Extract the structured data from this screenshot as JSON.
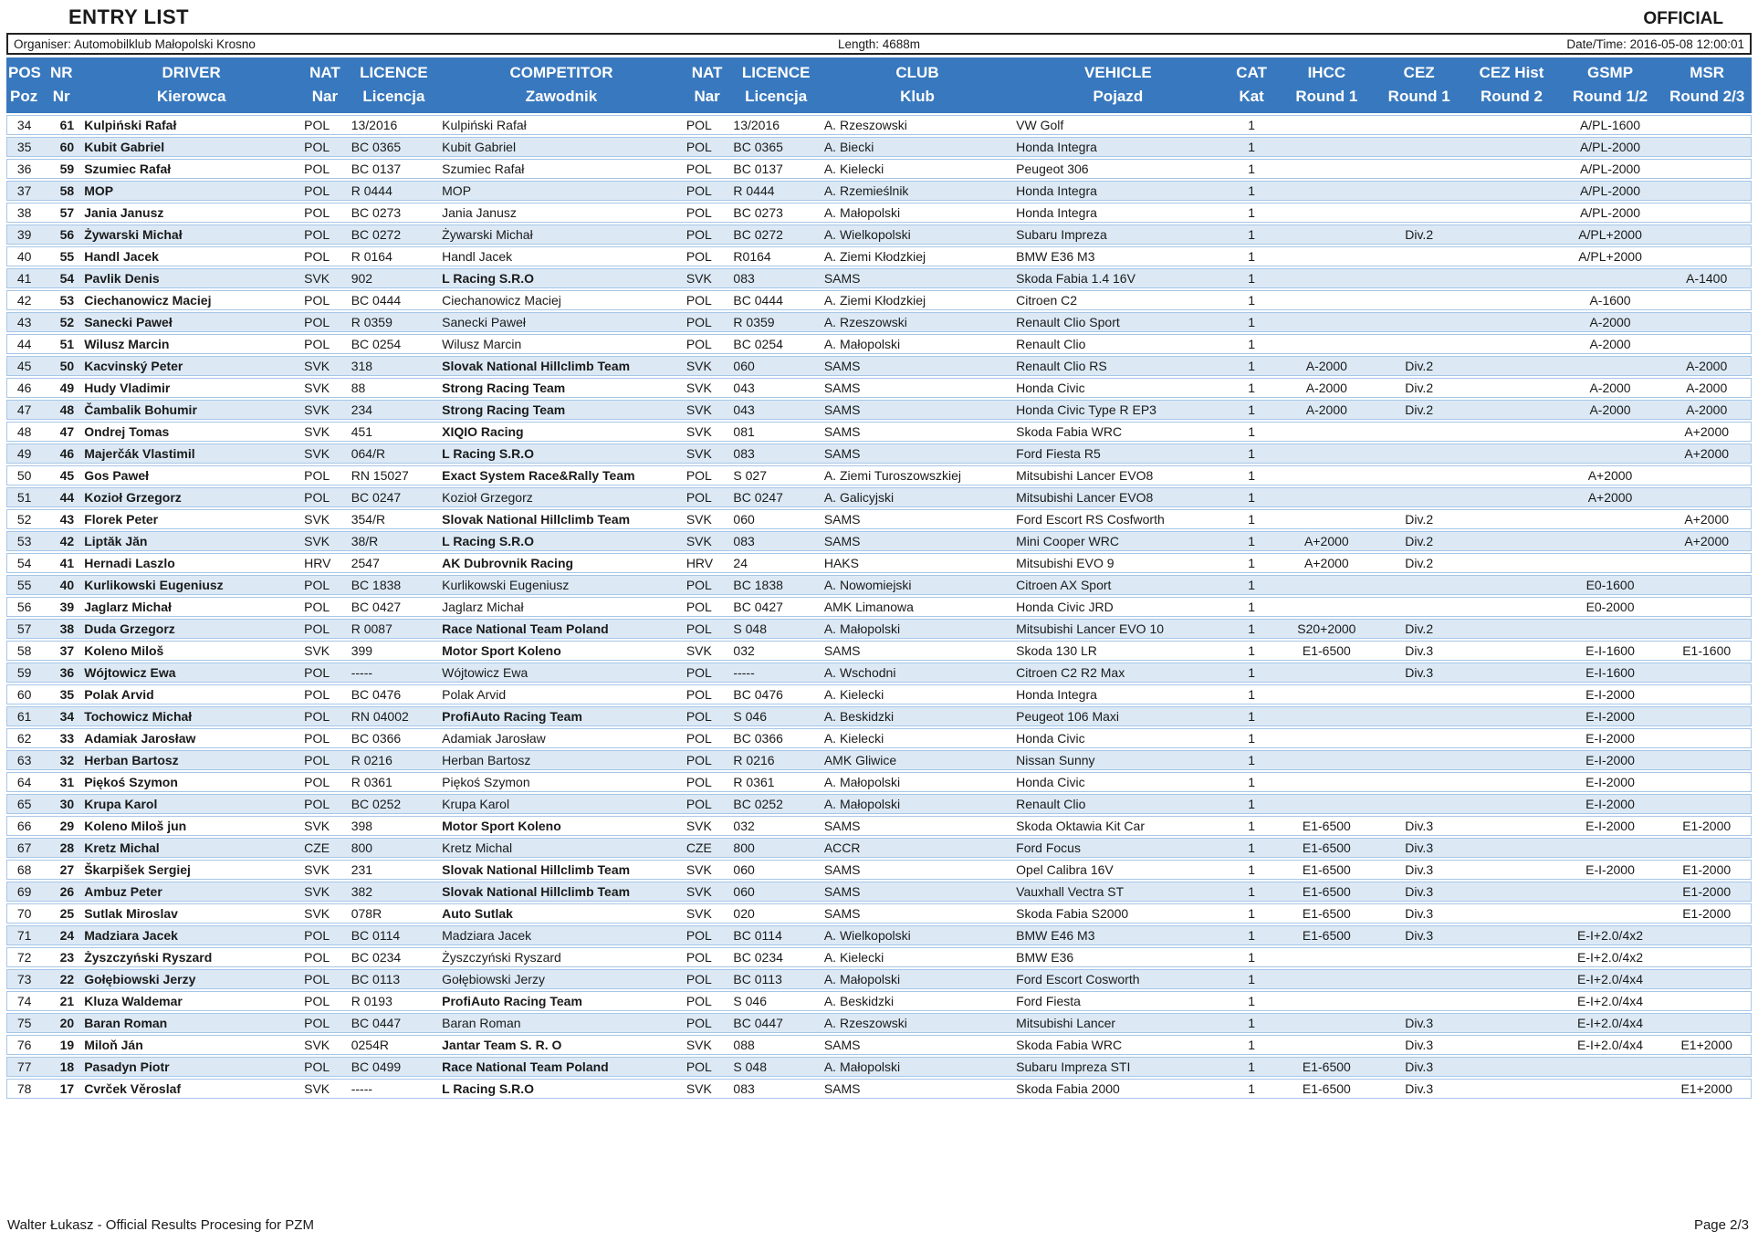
{
  "header": {
    "title": "ENTRY LIST",
    "official": "OFFICIAL",
    "organiser": "Organiser: Automobilklub Małopolski Krosno",
    "length": "Length: 4688m",
    "datetime": "Date/Time: 2016-05-08 12:00:01"
  },
  "colors": {
    "header_bg": "#3878BE",
    "stripe": "#DCE9F5",
    "grid": "#A6C6E7"
  },
  "table": {
    "columns": [
      {
        "key": "pos",
        "en": "POS",
        "pl": "Poz"
      },
      {
        "key": "nr",
        "en": "NR",
        "pl": "Nr"
      },
      {
        "key": "driver",
        "en": "DRIVER",
        "pl": "Kierowca"
      },
      {
        "key": "driver_nat",
        "en": "NAT",
        "pl": "Nar"
      },
      {
        "key": "driver_licence",
        "en": "LICENCE",
        "pl": "Licencja"
      },
      {
        "key": "competitor",
        "en": "COMPETITOR",
        "pl": "Zawodnik"
      },
      {
        "key": "comp_nat",
        "en": "NAT",
        "pl": "Nar"
      },
      {
        "key": "comp_licence",
        "en": "LICENCE",
        "pl": "Licencja"
      },
      {
        "key": "club",
        "en": "CLUB",
        "pl": "Klub"
      },
      {
        "key": "vehicle",
        "en": "VEHICLE",
        "pl": "Pojazd"
      },
      {
        "key": "cat",
        "en": "CAT",
        "pl": "Kat"
      },
      {
        "key": "ihcc",
        "en": "IHCC",
        "pl": "Round 1"
      },
      {
        "key": "cez",
        "en": "CEZ",
        "pl": "Round 1"
      },
      {
        "key": "cez_hist",
        "en": "CEZ Hist",
        "pl": "Round 2"
      },
      {
        "key": "gsmp",
        "en": "GSMP",
        "pl": "Round 1/2"
      },
      {
        "key": "msr",
        "en": "MSR",
        "pl": "Round 2/3"
      }
    ],
    "row_fields": [
      "pos",
      "nr",
      "driver",
      "driver_nat",
      "driver_licence",
      "competitor",
      "competitor_is_team",
      "comp_nat",
      "comp_licence",
      "club",
      "vehicle",
      "cat",
      "ihcc",
      "cez",
      "cez_hist",
      "gsmp",
      "msr"
    ],
    "rows": [
      [
        "34",
        "61",
        "Kulpiński Rafał",
        "POL",
        "13/2016",
        "Kulpiński Rafał",
        false,
        "POL",
        "13/2016",
        "A. Rzeszowski",
        "VW Golf",
        "1",
        "",
        "",
        "",
        "A/PL-1600",
        ""
      ],
      [
        "35",
        "60",
        "Kubit Gabriel",
        "POL",
        "BC 0365",
        "Kubit Gabriel",
        false,
        "POL",
        "BC 0365",
        "A. Biecki",
        "Honda Integra",
        "1",
        "",
        "",
        "",
        "A/PL-2000",
        ""
      ],
      [
        "36",
        "59",
        "Szumiec Rafał",
        "POL",
        "BC 0137",
        "Szumiec Rafał",
        false,
        "POL",
        "BC 0137",
        "A. Kielecki",
        "Peugeot 306",
        "1",
        "",
        "",
        "",
        "A/PL-2000",
        ""
      ],
      [
        "37",
        "58",
        "MOP",
        "POL",
        "R 0444",
        "MOP",
        false,
        "POL",
        "R 0444",
        "A. Rzemieślnik",
        "Honda Integra",
        "1",
        "",
        "",
        "",
        "A/PL-2000",
        ""
      ],
      [
        "38",
        "57",
        "Jania Janusz",
        "POL",
        "BC 0273",
        "Jania Janusz",
        false,
        "POL",
        "BC 0273",
        "A. Małopolski",
        "Honda Integra",
        "1",
        "",
        "",
        "",
        "A/PL-2000",
        ""
      ],
      [
        "39",
        "56",
        "Żywarski Michał",
        "POL",
        "BC 0272",
        "Żywarski Michał",
        false,
        "POL",
        "BC 0272",
        "A. Wielkopolski",
        "Subaru Impreza",
        "1",
        "",
        "Div.2",
        "",
        "A/PL+2000",
        ""
      ],
      [
        "40",
        "55",
        "Handl Jacek",
        "POL",
        "R 0164",
        "Handl Jacek",
        false,
        "POL",
        "R0164",
        "A. Ziemi Kłodzkiej",
        "BMW E36 M3",
        "1",
        "",
        "",
        "",
        "A/PL+2000",
        ""
      ],
      [
        "41",
        "54",
        "Pavlik Denis",
        "SVK",
        "902",
        "L Racing S.R.O",
        true,
        "SVK",
        "083",
        "SAMS",
        "Skoda Fabia 1.4 16V",
        "1",
        "",
        "",
        "",
        "",
        "A-1400"
      ],
      [
        "42",
        "53",
        "Ciechanowicz Maciej",
        "POL",
        "BC 0444",
        "Ciechanowicz Maciej",
        false,
        "POL",
        "BC 0444",
        "A. Ziemi Kłodzkiej",
        "Citroen C2",
        "1",
        "",
        "",
        "",
        "A-1600",
        ""
      ],
      [
        "43",
        "52",
        "Sanecki Paweł",
        "POL",
        "R 0359",
        "Sanecki Paweł",
        false,
        "POL",
        "R 0359",
        "A. Rzeszowski",
        "Renault Clio Sport",
        "1",
        "",
        "",
        "",
        "A-2000",
        ""
      ],
      [
        "44",
        "51",
        "Wilusz Marcin",
        "POL",
        "BC 0254",
        "Wilusz Marcin",
        false,
        "POL",
        "BC 0254",
        "A. Małopolski",
        "Renault Clio",
        "1",
        "",
        "",
        "",
        "A-2000",
        ""
      ],
      [
        "45",
        "50",
        "Kacvinský Peter",
        "SVK",
        "318",
        "Slovak National Hillclimb Team",
        true,
        "SVK",
        "060",
        "SAMS",
        "Renault Clio RS",
        "1",
        "A-2000",
        "Div.2",
        "",
        "",
        "A-2000"
      ],
      [
        "46",
        "49",
        "Hudy Vladimir",
        "SVK",
        "88",
        "Strong Racing Team",
        true,
        "SVK",
        "043",
        "SAMS",
        "Honda Civic",
        "1",
        "A-2000",
        "Div.2",
        "",
        "A-2000",
        "A-2000"
      ],
      [
        "47",
        "48",
        "Čambalik Bohumir",
        "SVK",
        "234",
        "Strong Racing Team",
        true,
        "SVK",
        "043",
        "SAMS",
        "Honda Civic Type R EP3",
        "1",
        "A-2000",
        "Div.2",
        "",
        "A-2000",
        "A-2000"
      ],
      [
        "48",
        "47",
        "Ondrej Tomas",
        "SVK",
        "451",
        "XIQIO Racing",
        true,
        "SVK",
        "081",
        "SAMS",
        "Skoda Fabia WRC",
        "1",
        "",
        "",
        "",
        "",
        "A+2000"
      ],
      [
        "49",
        "46",
        "Majerčák Vlastimil",
        "SVK",
        "064/R",
        "L Racing S.R.O",
        true,
        "SVK",
        "083",
        "SAMS",
        "Ford Fiesta R5",
        "1",
        "",
        "",
        "",
        "",
        "A+2000"
      ],
      [
        "50",
        "45",
        "Gos Paweł",
        "POL",
        "RN 15027",
        "Exact System Race&Rally Team",
        true,
        "POL",
        "S 027",
        "A. Ziemi Turoszowszkiej",
        "Mitsubishi Lancer EVO8",
        "1",
        "",
        "",
        "",
        "A+2000",
        ""
      ],
      [
        "51",
        "44",
        "Kozioł Grzegorz",
        "POL",
        "BC 0247",
        "Kozioł Grzegorz",
        false,
        "POL",
        "BC 0247",
        "A. Galicyjski",
        "Mitsubishi Lancer EVO8",
        "1",
        "",
        "",
        "",
        "A+2000",
        ""
      ],
      [
        "52",
        "43",
        "Florek Peter",
        "SVK",
        "354/R",
        "Slovak National Hillclimb Team",
        true,
        "SVK",
        "060",
        "SAMS",
        "Ford Escort RS Cosfworth",
        "1",
        "",
        "Div.2",
        "",
        "",
        "A+2000"
      ],
      [
        "53",
        "42",
        "Liptăk Jăn",
        "SVK",
        "38/R",
        "L Racing S.R.O",
        true,
        "SVK",
        "083",
        "SAMS",
        "Mini Cooper WRC",
        "1",
        "A+2000",
        "Div.2",
        "",
        "",
        "A+2000"
      ],
      [
        "54",
        "41",
        "Hernadi Laszlo",
        "HRV",
        "2547",
        "AK Dubrovnik Racing",
        true,
        "HRV",
        "24",
        "HAKS",
        "Mitsubishi EVO 9",
        "1",
        "A+2000",
        "Div.2",
        "",
        "",
        ""
      ],
      [
        "55",
        "40",
        "Kurlikowski Eugeniusz",
        "POL",
        "BC 1838",
        "Kurlikowski Eugeniusz",
        false,
        "POL",
        "BC 1838",
        "A. Nowomiejski",
        "Citroen AX Sport",
        "1",
        "",
        "",
        "",
        "E0-1600",
        ""
      ],
      [
        "56",
        "39",
        "Jaglarz Michał",
        "POL",
        "BC 0427",
        "Jaglarz Michał",
        false,
        "POL",
        "BC 0427",
        "AMK Limanowa",
        "Honda Civic JRD",
        "1",
        "",
        "",
        "",
        "E0-2000",
        ""
      ],
      [
        "57",
        "38",
        "Duda Grzegorz",
        "POL",
        "R 0087",
        "Race National Team Poland",
        true,
        "POL",
        "S 048",
        "A. Małopolski",
        "Mitsubishi Lancer EVO 10",
        "1",
        "S20+2000",
        "Div.2",
        "",
        "",
        ""
      ],
      [
        "58",
        "37",
        "Koleno Miloš",
        "SVK",
        "399",
        "Motor Sport Koleno",
        true,
        "SVK",
        "032",
        "SAMS",
        "Skoda 130 LR",
        "1",
        "E1-6500",
        "Div.3",
        "",
        "E-I-1600",
        "E1-1600"
      ],
      [
        "59",
        "36",
        "Wójtowicz Ewa",
        "POL",
        "-----",
        "Wójtowicz Ewa",
        false,
        "POL",
        "-----",
        "A. Wschodni",
        "Citroen C2 R2 Max",
        "1",
        "",
        "Div.3",
        "",
        "E-I-1600",
        ""
      ],
      [
        "60",
        "35",
        "Polak Arvid",
        "POL",
        "BC 0476",
        "Polak Arvid",
        false,
        "POL",
        "BC 0476",
        "A. Kielecki",
        "Honda Integra",
        "1",
        "",
        "",
        "",
        "E-I-2000",
        ""
      ],
      [
        "61",
        "34",
        "Tochowicz Michał",
        "POL",
        "RN 04002",
        "ProfiAuto Racing Team",
        true,
        "POL",
        "S 046",
        "A. Beskidzki",
        "Peugeot 106 Maxi",
        "1",
        "",
        "",
        "",
        "E-I-2000",
        ""
      ],
      [
        "62",
        "33",
        "Adamiak Jarosław",
        "POL",
        "BC 0366",
        "Adamiak Jarosław",
        false,
        "POL",
        "BC 0366",
        "A. Kielecki",
        "Honda Civic",
        "1",
        "",
        "",
        "",
        "E-I-2000",
        ""
      ],
      [
        "63",
        "32",
        "Herban Bartosz",
        "POL",
        "R 0216",
        "Herban Bartosz",
        false,
        "POL",
        "R 0216",
        "AMK Gliwice",
        "Nissan Sunny",
        "1",
        "",
        "",
        "",
        "E-I-2000",
        ""
      ],
      [
        "64",
        "31",
        "Piękoś Szymon",
        "POL",
        "R 0361",
        "Piękoś Szymon",
        false,
        "POL",
        "R 0361",
        "A. Małopolski",
        "Honda Civic",
        "1",
        "",
        "",
        "",
        "E-I-2000",
        ""
      ],
      [
        "65",
        "30",
        "Krupa Karol",
        "POL",
        "BC 0252",
        "Krupa Karol",
        false,
        "POL",
        "BC 0252",
        "A. Małopolski",
        "Renault Clio",
        "1",
        "",
        "",
        "",
        "E-I-2000",
        ""
      ],
      [
        "66",
        "29",
        "Koleno Miloš jun",
        "SVK",
        "398",
        "Motor Sport Koleno",
        true,
        "SVK",
        "032",
        "SAMS",
        "Skoda Oktawia Kit Car",
        "1",
        "E1-6500",
        "Div.3",
        "",
        "E-I-2000",
        "E1-2000"
      ],
      [
        "67",
        "28",
        "Kretz Michal",
        "CZE",
        "800",
        "Kretz Michal",
        false,
        "CZE",
        "800",
        "ACCR",
        "Ford Focus",
        "1",
        "E1-6500",
        "Div.3",
        "",
        "",
        ""
      ],
      [
        "68",
        "27",
        "Škarpišek Sergiej",
        "SVK",
        "231",
        "Slovak National Hillclimb Team",
        true,
        "SVK",
        "060",
        "SAMS",
        "Opel Calibra 16V",
        "1",
        "E1-6500",
        "Div.3",
        "",
        "E-I-2000",
        "E1-2000"
      ],
      [
        "69",
        "26",
        "Ambuz Peter",
        "SVK",
        "382",
        "Slovak National Hillclimb Team",
        true,
        "SVK",
        "060",
        "SAMS",
        "Vauxhall Vectra ST",
        "1",
        "E1-6500",
        "Div.3",
        "",
        "",
        "E1-2000"
      ],
      [
        "70",
        "25",
        "Sutlak Miroslav",
        "SVK",
        "078R",
        "Auto Sutlak",
        true,
        "SVK",
        "020",
        "SAMS",
        "Skoda Fabia S2000",
        "1",
        "E1-6500",
        "Div.3",
        "",
        "",
        "E1-2000"
      ],
      [
        "71",
        "24",
        "Madziara Jacek",
        "POL",
        "BC 0114",
        "Madziara Jacek",
        false,
        "POL",
        "BC 0114",
        "A. Wielkopolski",
        "BMW E46 M3",
        "1",
        "E1-6500",
        "Div.3",
        "",
        "E-I+2.0/4x2",
        ""
      ],
      [
        "72",
        "23",
        "Żyszczyński Ryszard",
        "POL",
        "BC 0234",
        "Żyszczyński Ryszard",
        false,
        "POL",
        "BC 0234",
        "A. Kielecki",
        "BMW E36",
        "1",
        "",
        "",
        "",
        "E-I+2.0/4x2",
        ""
      ],
      [
        "73",
        "22",
        "Gołębiowski Jerzy",
        "POL",
        "BC 0113",
        "Gołębiowski Jerzy",
        false,
        "POL",
        "BC 0113",
        "A. Małopolski",
        "Ford Escort Cosworth",
        "1",
        "",
        "",
        "",
        "E-I+2.0/4x4",
        ""
      ],
      [
        "74",
        "21",
        "Kluza Waldemar",
        "POL",
        "R 0193",
        "ProfiAuto Racing Team",
        true,
        "POL",
        "S 046",
        "A. Beskidzki",
        "Ford Fiesta",
        "1",
        "",
        "",
        "",
        "E-I+2.0/4x4",
        ""
      ],
      [
        "75",
        "20",
        "Baran Roman",
        "POL",
        "BC 0447",
        "Baran Roman",
        false,
        "POL",
        "BC 0447",
        "A. Rzeszowski",
        "Mitsubishi Lancer",
        "1",
        "",
        "Div.3",
        "",
        "E-I+2.0/4x4",
        ""
      ],
      [
        "76",
        "19",
        "Miloň Ján",
        "SVK",
        "0254R",
        "Jantar Team S. R. O",
        true,
        "SVK",
        "088",
        "SAMS",
        "Skoda Fabia WRC",
        "1",
        "",
        "Div.3",
        "",
        "E-I+2.0/4x4",
        "E1+2000"
      ],
      [
        "77",
        "18",
        "Pasadyn Piotr",
        "POL",
        "BC 0499",
        "Race National Team Poland",
        true,
        "POL",
        "S 048",
        "A. Małopolski",
        "Subaru Impreza STI",
        "1",
        "E1-6500",
        "Div.3",
        "",
        "",
        ""
      ],
      [
        "78",
        "17",
        "Cvrček Věroslaf",
        "SVK",
        "-----",
        "L Racing S.R.O",
        true,
        "SVK",
        "083",
        "SAMS",
        "Skoda Fabia 2000",
        "1",
        "E1-6500",
        "Div.3",
        "",
        "",
        "E1+2000"
      ]
    ]
  },
  "footer": {
    "left": "Walter Łukasz - Official Results Procesing for PZM",
    "right": "Page 2/3"
  }
}
